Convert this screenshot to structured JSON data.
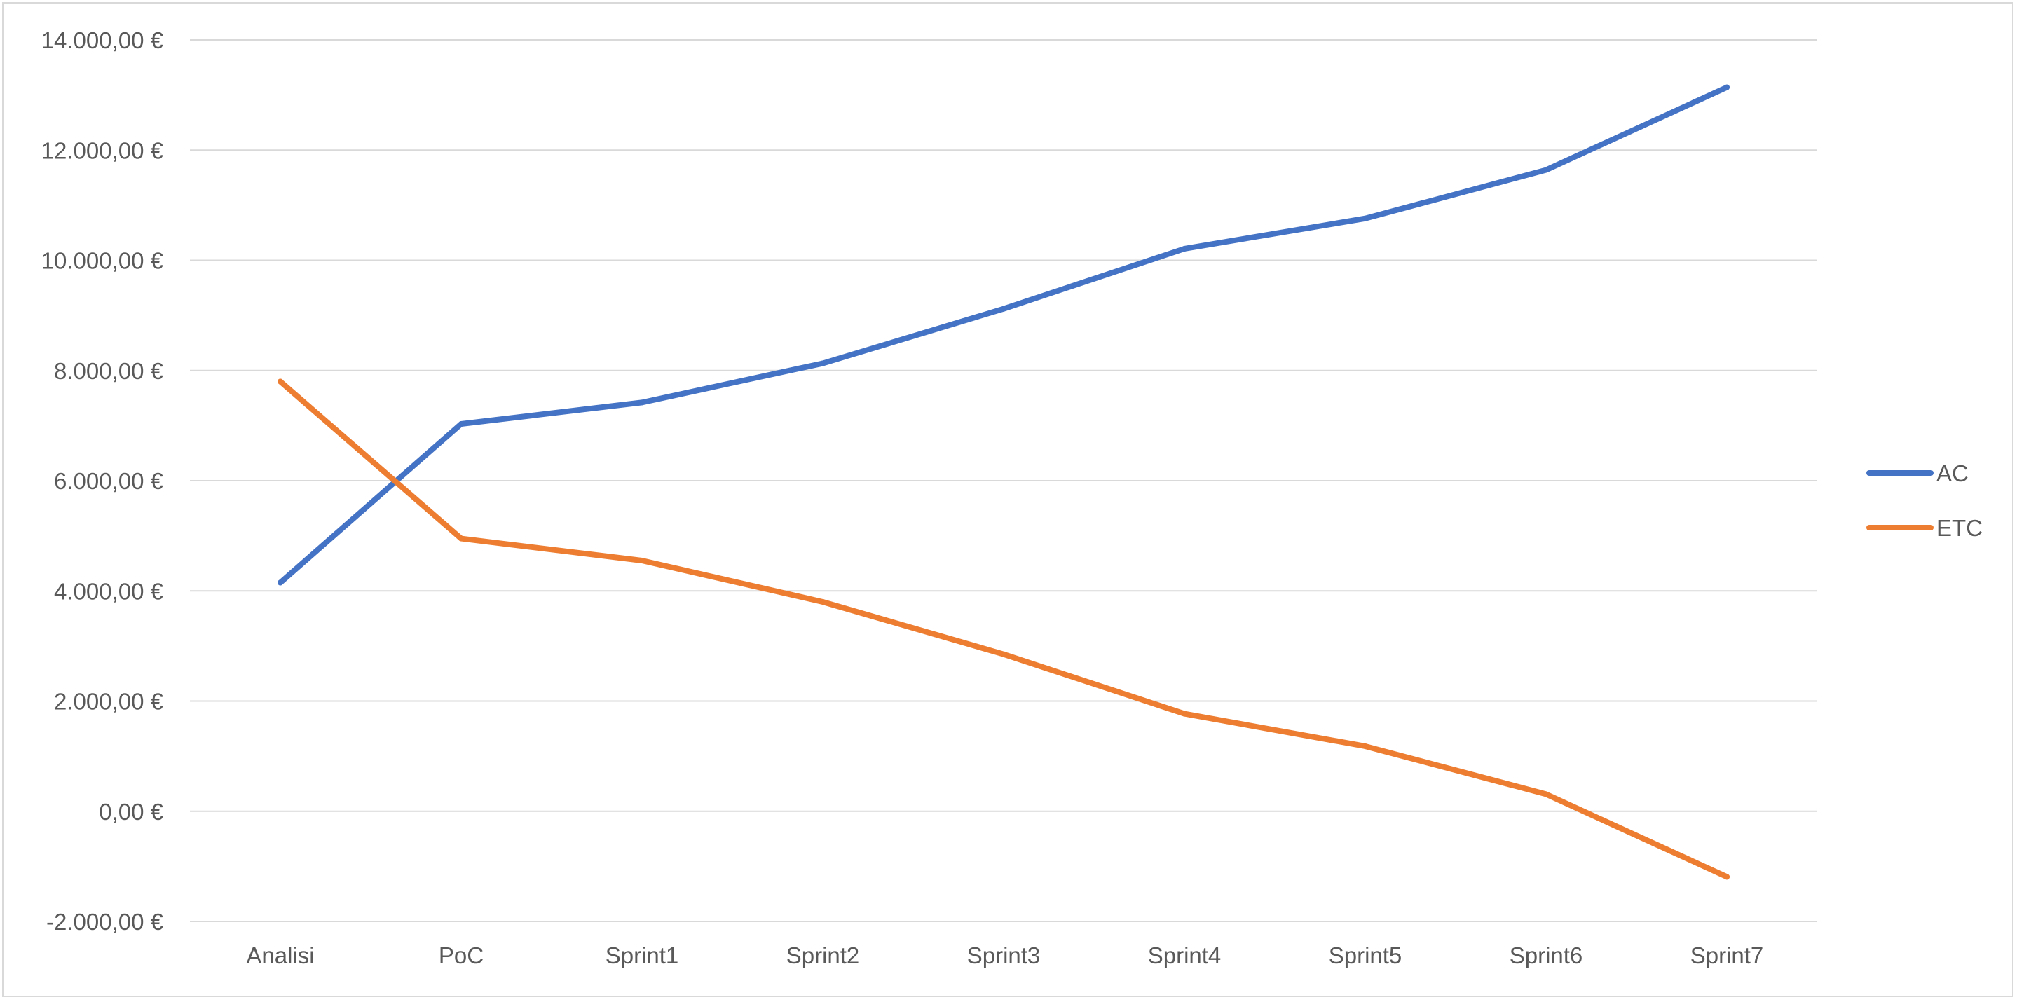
{
  "chart_data": {
    "type": "line",
    "title": "",
    "xlabel": "",
    "ylabel": "",
    "categories": [
      "Analisi",
      "PoC",
      "Sprint1",
      "Sprint2",
      "Sprint3",
      "Sprint4",
      "Sprint5",
      "Sprint6",
      "Sprint7"
    ],
    "ylim": [
      -2000,
      14000
    ],
    "yticks": [
      14000,
      12000,
      10000,
      8000,
      6000,
      4000,
      2000,
      0,
      -2000
    ],
    "ytick_labels": [
      "14.000,00 €",
      "12.000,00 €",
      "10.000,00 €",
      "8.000,00 €",
      "6.000,00 €",
      "4.000,00 €",
      "2.000,00 €",
      "0,00 €",
      "-2.000,00 €"
    ],
    "grid": true,
    "legend_position": "right",
    "series": [
      {
        "name": "AC",
        "color": "#4472c4",
        "values": [
          4150,
          7030,
          7420,
          8130,
          9120,
          10210,
          10760,
          11640,
          13140
        ]
      },
      {
        "name": "ETC",
        "color": "#ed7d31",
        "values": [
          7800,
          4950,
          4550,
          3800,
          2850,
          1770,
          1180,
          310,
          -1190
        ]
      }
    ]
  }
}
